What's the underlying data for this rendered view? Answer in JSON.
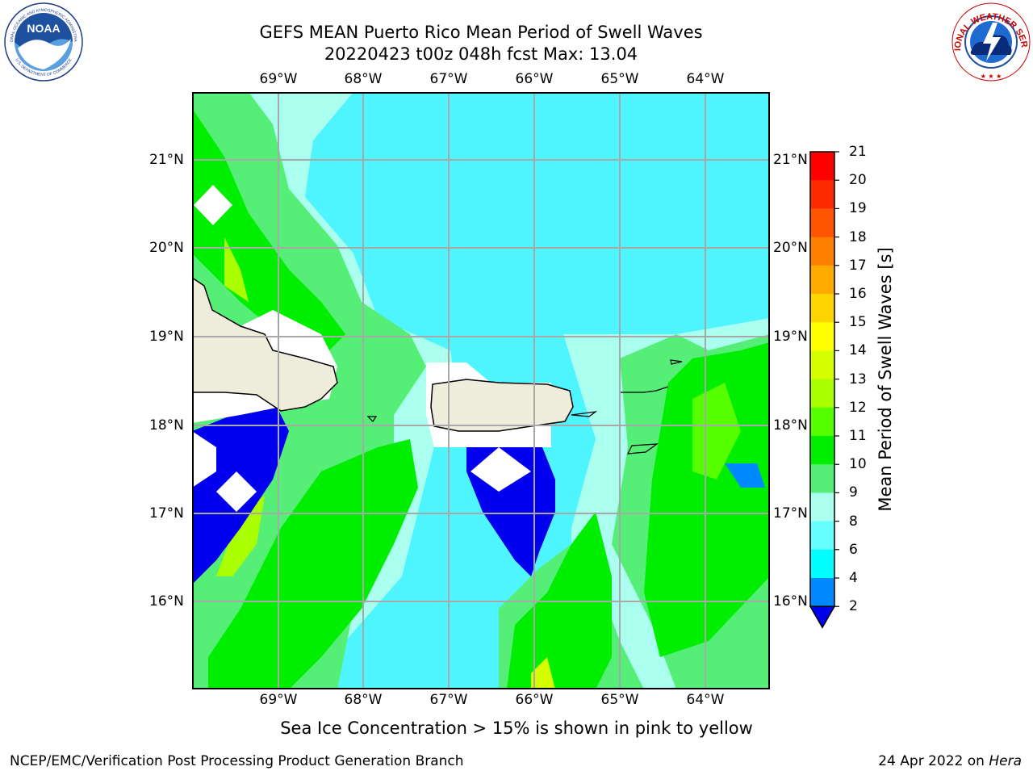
{
  "title": {
    "line1": "GEFS MEAN Puerto Rico Mean Period of Swell Waves",
    "line2": "20220423 t00z 048h fcst   Max: 13.04"
  },
  "map": {
    "lon_labels": [
      "69°W",
      "68°W",
      "67°W",
      "66°W",
      "65°W",
      "64°W"
    ],
    "lat_labels": [
      "21°N",
      "20°N",
      "19°N",
      "18°N",
      "17°N",
      "16°N"
    ]
  },
  "colorbar": {
    "label": "Mean Period of Swell Waves [s]",
    "ticks": [
      "21",
      "20",
      "19",
      "18",
      "17",
      "16",
      "15",
      "14",
      "13",
      "12",
      "11",
      "10",
      "9",
      "8",
      "6",
      "4",
      "2"
    ],
    "colors": [
      "#ff0000",
      "#ff2b00",
      "#ff5500",
      "#ff8000",
      "#ffaa00",
      "#ffd500",
      "#ffff00",
      "#d5ff00",
      "#aaff00",
      "#55ff00",
      "#00ee00",
      "#55ee77",
      "#aaffee",
      "#66ffff",
      "#00ffff",
      "#0088ff",
      "#0000ee"
    ],
    "extend_color": "#0000ee"
  },
  "note": "Sea Ice Concentration > 15% is shown in pink to yellow",
  "footer": {
    "left": "NCEP/EMC/Verification Post Processing Product Generation Branch",
    "right_date": "24 Apr 2022 on ",
    "right_machine": "Hera"
  },
  "logos": {
    "noaa_text": "NOAA",
    "noaa_ring_top": "NATIONAL OCEANIC AND ATMOSPHERIC ADMINISTRATION",
    "noaa_ring_bottom": "U.S. DEPARTMENT OF COMMERCE",
    "nws_ring": "NATIONAL WEATHER SERVICE"
  }
}
